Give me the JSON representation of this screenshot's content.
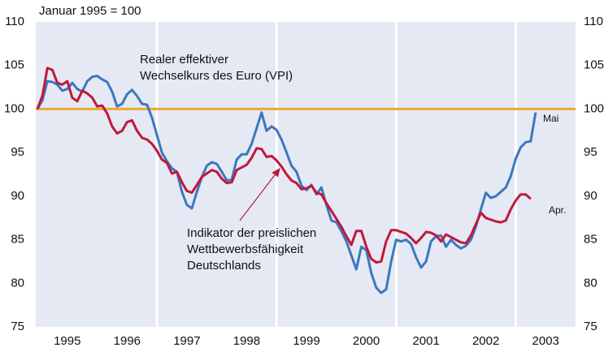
{
  "chart_data": {
    "type": "line",
    "title": "Januar 1995 = 100",
    "x": [
      1995.0,
      1995.083,
      1995.167,
      1995.25,
      1995.333,
      1995.417,
      1995.5,
      1995.583,
      1995.667,
      1995.75,
      1995.833,
      1995.917,
      1996.0,
      1996.083,
      1996.167,
      1996.25,
      1996.333,
      1996.417,
      1996.5,
      1996.583,
      1996.667,
      1996.75,
      1996.833,
      1996.917,
      1997.0,
      1997.083,
      1997.167,
      1997.25,
      1997.333,
      1997.417,
      1997.5,
      1997.583,
      1997.667,
      1997.75,
      1997.833,
      1997.917,
      1998.0,
      1998.083,
      1998.167,
      1998.25,
      1998.333,
      1998.417,
      1998.5,
      1998.583,
      1998.667,
      1998.75,
      1998.833,
      1998.917,
      1999.0,
      1999.083,
      1999.167,
      1999.25,
      1999.333,
      1999.417,
      1999.5,
      1999.583,
      1999.667,
      1999.75,
      1999.833,
      1999.917,
      2000.0,
      2000.083,
      2000.167,
      2000.25,
      2000.333,
      2000.417,
      2000.5,
      2000.583,
      2000.667,
      2000.75,
      2000.833,
      2000.917,
      2001.0,
      2001.083,
      2001.167,
      2001.25,
      2001.333,
      2001.417,
      2001.5,
      2001.583,
      2001.667,
      2001.75,
      2001.833,
      2001.917,
      2002.0,
      2002.083,
      2002.167,
      2002.25,
      2002.333,
      2002.417,
      2002.5,
      2002.583,
      2002.667,
      2002.75,
      2002.833,
      2002.917,
      2003.0,
      2003.083,
      2003.167,
      2003.25,
      2003.333
    ],
    "series": [
      {
        "color": "#3b78bf",
        "label": [
          "Realer effektiver",
          "Wechselkurs des Euro (VPI)"
        ],
        "end_label": "Mai",
        "values": [
          100.0,
          101.0,
          103.2,
          103.1,
          102.8,
          102.1,
          102.3,
          103.0,
          102.3,
          102.0,
          103.2,
          103.7,
          103.8,
          103.4,
          103.1,
          102.0,
          100.3,
          100.6,
          101.7,
          102.2,
          101.5,
          100.6,
          100.5,
          99.0,
          97.0,
          95.0,
          94.0,
          93.2,
          92.8,
          90.5,
          89.0,
          88.6,
          90.5,
          92.2,
          93.5,
          93.9,
          93.7,
          92.8,
          91.8,
          91.9,
          94.2,
          94.8,
          94.8,
          96.0,
          97.8,
          99.6,
          97.5,
          98.0,
          97.6,
          96.5,
          95.0,
          93.5,
          92.8,
          91.2,
          90.7,
          91.3,
          90.2,
          91.0,
          89.0,
          87.2,
          87.0,
          86.0,
          84.8,
          83.2,
          81.6,
          84.2,
          83.8,
          81.2,
          79.5,
          78.9,
          79.3,
          82.5,
          85.0,
          84.8,
          85.0,
          84.5,
          83.0,
          81.8,
          82.5,
          84.8,
          85.4,
          85.5,
          84.2,
          85.0,
          84.4,
          84.0,
          84.3,
          85.0,
          86.5,
          88.5,
          90.4,
          89.8,
          90.0,
          90.5,
          91.0,
          92.3,
          94.3,
          95.6,
          96.2,
          96.3,
          99.6
        ]
      },
      {
        "color": "#c2173b",
        "label": [
          "Indikator der preislichen",
          "Wettbewerbsfähigkeit",
          "Deutschlands"
        ],
        "end_label": "Apr.",
        "values": [
          100.0,
          101.5,
          104.7,
          104.5,
          103.0,
          102.8,
          103.2,
          101.3,
          100.9,
          102.1,
          101.8,
          101.3,
          100.3,
          100.4,
          99.5,
          98.0,
          97.2,
          97.5,
          98.5,
          98.7,
          97.5,
          96.7,
          96.5,
          96.0,
          95.2,
          94.2,
          93.8,
          92.6,
          92.8,
          91.6,
          90.6,
          90.4,
          91.3,
          92.2,
          92.6,
          93.0,
          92.8,
          92.0,
          91.5,
          91.6,
          93.0,
          93.3,
          93.6,
          94.4,
          95.5,
          95.4,
          94.5,
          94.6,
          94.1,
          93.4,
          92.5,
          91.8,
          91.5,
          90.8,
          90.9,
          91.2,
          90.4,
          90.2,
          89.2,
          88.3,
          87.4,
          86.5,
          85.4,
          84.4,
          86.0,
          86.0,
          84.2,
          82.8,
          82.4,
          82.5,
          84.8,
          86.1,
          86.1,
          85.9,
          85.7,
          85.2,
          84.6,
          85.2,
          85.9,
          85.8,
          85.5,
          84.8,
          85.6,
          85.3,
          85.0,
          84.7,
          84.6,
          85.5,
          86.8,
          88.1,
          87.5,
          87.3,
          87.1,
          87.0,
          87.2,
          88.5,
          89.5,
          90.2,
          90.2,
          89.7,
          null
        ]
      }
    ],
    "reference_line": {
      "value": 100,
      "color": "#f0a830"
    },
    "separators": [
      1997,
      1999,
      2001,
      2003
    ],
    "xlim": [
      1995,
      2004
    ],
    "xticks": [
      {
        "value": 1995.5,
        "label": "1995"
      },
      {
        "value": 1996.5,
        "label": "1996"
      },
      {
        "value": 1997.5,
        "label": "1997"
      },
      {
        "value": 1998.5,
        "label": "1998"
      },
      {
        "value": 1999.5,
        "label": "1999"
      },
      {
        "value": 2000.5,
        "label": "2000"
      },
      {
        "value": 2001.5,
        "label": "2001"
      },
      {
        "value": 2002.5,
        "label": "2002"
      },
      {
        "value": 2003.5,
        "label": "2003"
      }
    ],
    "ylim": [
      75,
      110
    ],
    "yticks": [
      75,
      80,
      85,
      90,
      95,
      100,
      105,
      110
    ],
    "y2lim": [
      75,
      110
    ],
    "y2ticks": [
      75,
      80,
      85,
      90,
      95,
      100,
      105,
      110
    ]
  }
}
